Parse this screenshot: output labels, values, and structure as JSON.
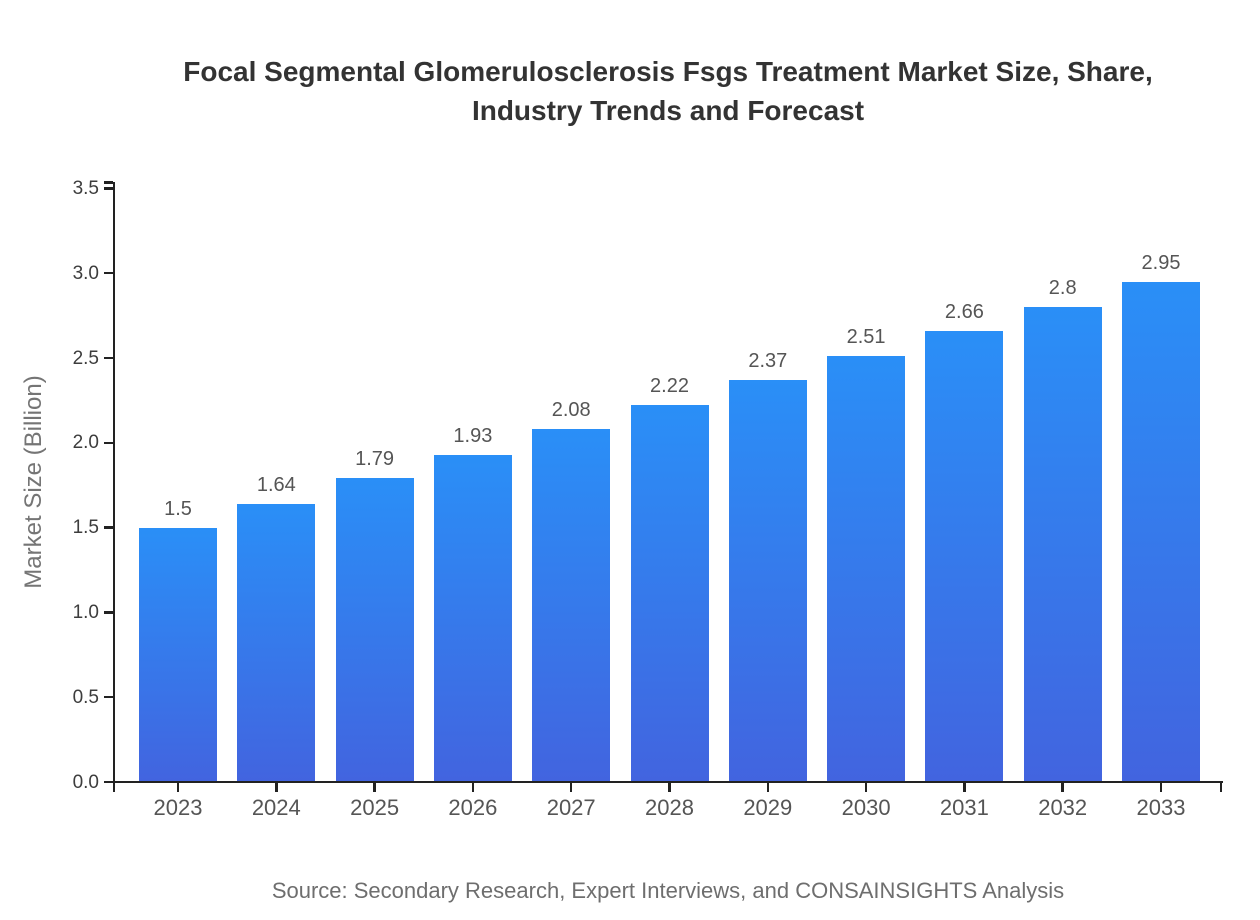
{
  "chart_data": {
    "type": "bar",
    "title": "Focal Segmental Glomerulosclerosis Fsgs Treatment Market Size, Share, Industry Trends and Forecast",
    "title_lines": [
      "Focal Segmental Glomerulosclerosis Fsgs Treatment Market Size, Share,",
      "Industry Trends and Forecast"
    ],
    "categories": [
      "2023",
      "2024",
      "2025",
      "2026",
      "2027",
      "2028",
      "2029",
      "2030",
      "2031",
      "2032",
      "2033"
    ],
    "values": [
      1.5,
      1.64,
      1.79,
      1.93,
      2.08,
      2.22,
      2.37,
      2.51,
      2.66,
      2.8,
      2.95
    ],
    "value_labels": [
      "1.5",
      "1.64",
      "1.79",
      "1.93",
      "2.08",
      "2.22",
      "2.37",
      "2.51",
      "2.66",
      "2.8",
      "2.95"
    ],
    "xlabel": "",
    "ylabel": "Market Size (Billion)",
    "ylim": [
      0,
      3.5
    ],
    "ytick_labels": [
      "0.0",
      "0.5",
      "1.0",
      "1.5",
      "2.0",
      "2.5",
      "3.0",
      "3.5"
    ],
    "grid": false,
    "legend": false,
    "bar_value_labels_shown": true,
    "source_note": "Source: Secondary Research, Expert Interviews, and CONSAINSIGHTS Analysis",
    "colors": {
      "background": "#ffffff",
      "bar_gradient_top": "#2A8FF7",
      "bar_gradient_bottom": "#4264DF",
      "title": "#333333",
      "axis": "#222222",
      "ytick_label": "#3d3d3d",
      "xtick_label": "#555555",
      "value_label": "#555555",
      "axis_title": "#757575",
      "source": "#6e6e6e"
    }
  }
}
